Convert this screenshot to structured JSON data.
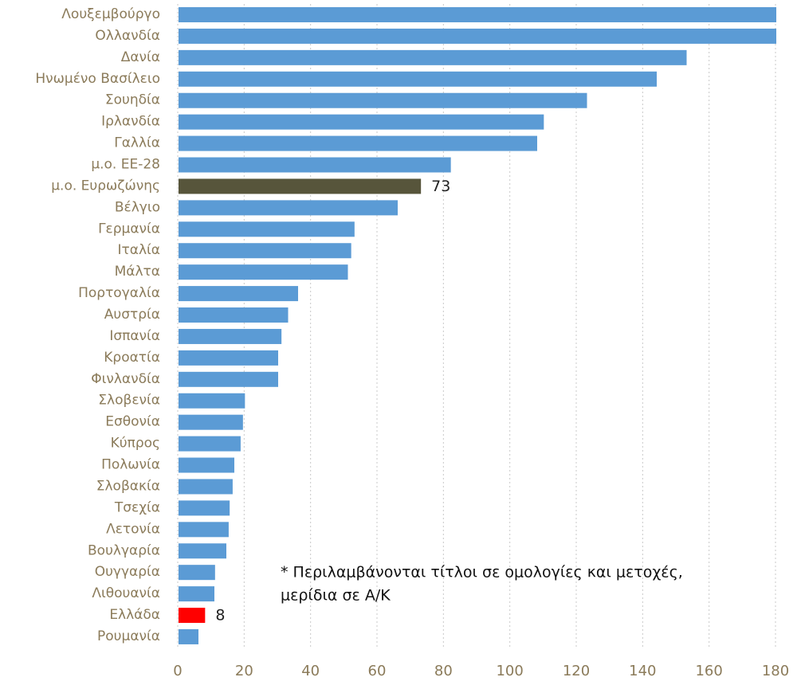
{
  "chart_data": {
    "type": "barh",
    "categories": [
      "Λουξεμβούργο",
      "Ολλανδία",
      "Δανία",
      "Ηνωμένο Βασίλειο",
      "Σουηδία",
      "Ιρλανδία",
      "Γαλλία",
      "μ.ο. ΕΕ-28",
      "μ.ο. Ευρωζώνης",
      "Βέλγιο",
      "Γερμανία",
      "Ιταλία",
      "Μάλτα",
      "Πορτογαλία",
      "Αυστρία",
      "Ισπανία",
      "Κροατία",
      "Φινλανδία",
      "Σλοβενία",
      "Εσθονία",
      "Κύπρος",
      "Πολωνία",
      "Σλοβακία",
      "Τσεχία",
      "Λετονία",
      "Βουλγαρία",
      "Ουγγαρία",
      "Λιθουανία",
      "Ελλάδα",
      "Ρουμανία"
    ],
    "values": [
      180,
      180,
      153,
      144,
      123,
      110,
      108,
      82,
      73,
      66,
      53,
      52,
      51,
      36,
      33,
      31,
      30,
      30,
      20,
      19.4,
      18.7,
      16.8,
      16.3,
      15.4,
      15.1,
      14.4,
      11,
      10.8,
      8,
      6
    ],
    "value_labels": [
      null,
      null,
      null,
      null,
      null,
      null,
      null,
      null,
      "73",
      null,
      null,
      null,
      null,
      null,
      null,
      null,
      null,
      null,
      null,
      null,
      null,
      null,
      null,
      null,
      null,
      null,
      null,
      null,
      "8",
      null
    ],
    "colors": [
      "#5b9bd5",
      "#5b9bd5",
      "#5b9bd5",
      "#5b9bd5",
      "#5b9bd5",
      "#5b9bd5",
      "#5b9bd5",
      "#5b9bd5",
      "#57553b",
      "#5b9bd5",
      "#5b9bd5",
      "#5b9bd5",
      "#5b9bd5",
      "#5b9bd5",
      "#5b9bd5",
      "#5b9bd5",
      "#5b9bd5",
      "#5b9bd5",
      "#5b9bd5",
      "#5b9bd5",
      "#5b9bd5",
      "#5b9bd5",
      "#5b9bd5",
      "#5b9bd5",
      "#5b9bd5",
      "#5b9bd5",
      "#5b9bd5",
      "#5b9bd5",
      "#ff0000",
      "#5b9bd5"
    ],
    "xlim": [
      0,
      180
    ],
    "xticks": [
      0,
      20,
      40,
      60,
      80,
      100,
      120,
      140,
      160,
      180
    ],
    "grid": true,
    "note": [
      "* Περιλαμβάνονται τίτλοι σε ομολογίες και μετοχές,",
      "μερίδια σε Α/Κ"
    ]
  }
}
